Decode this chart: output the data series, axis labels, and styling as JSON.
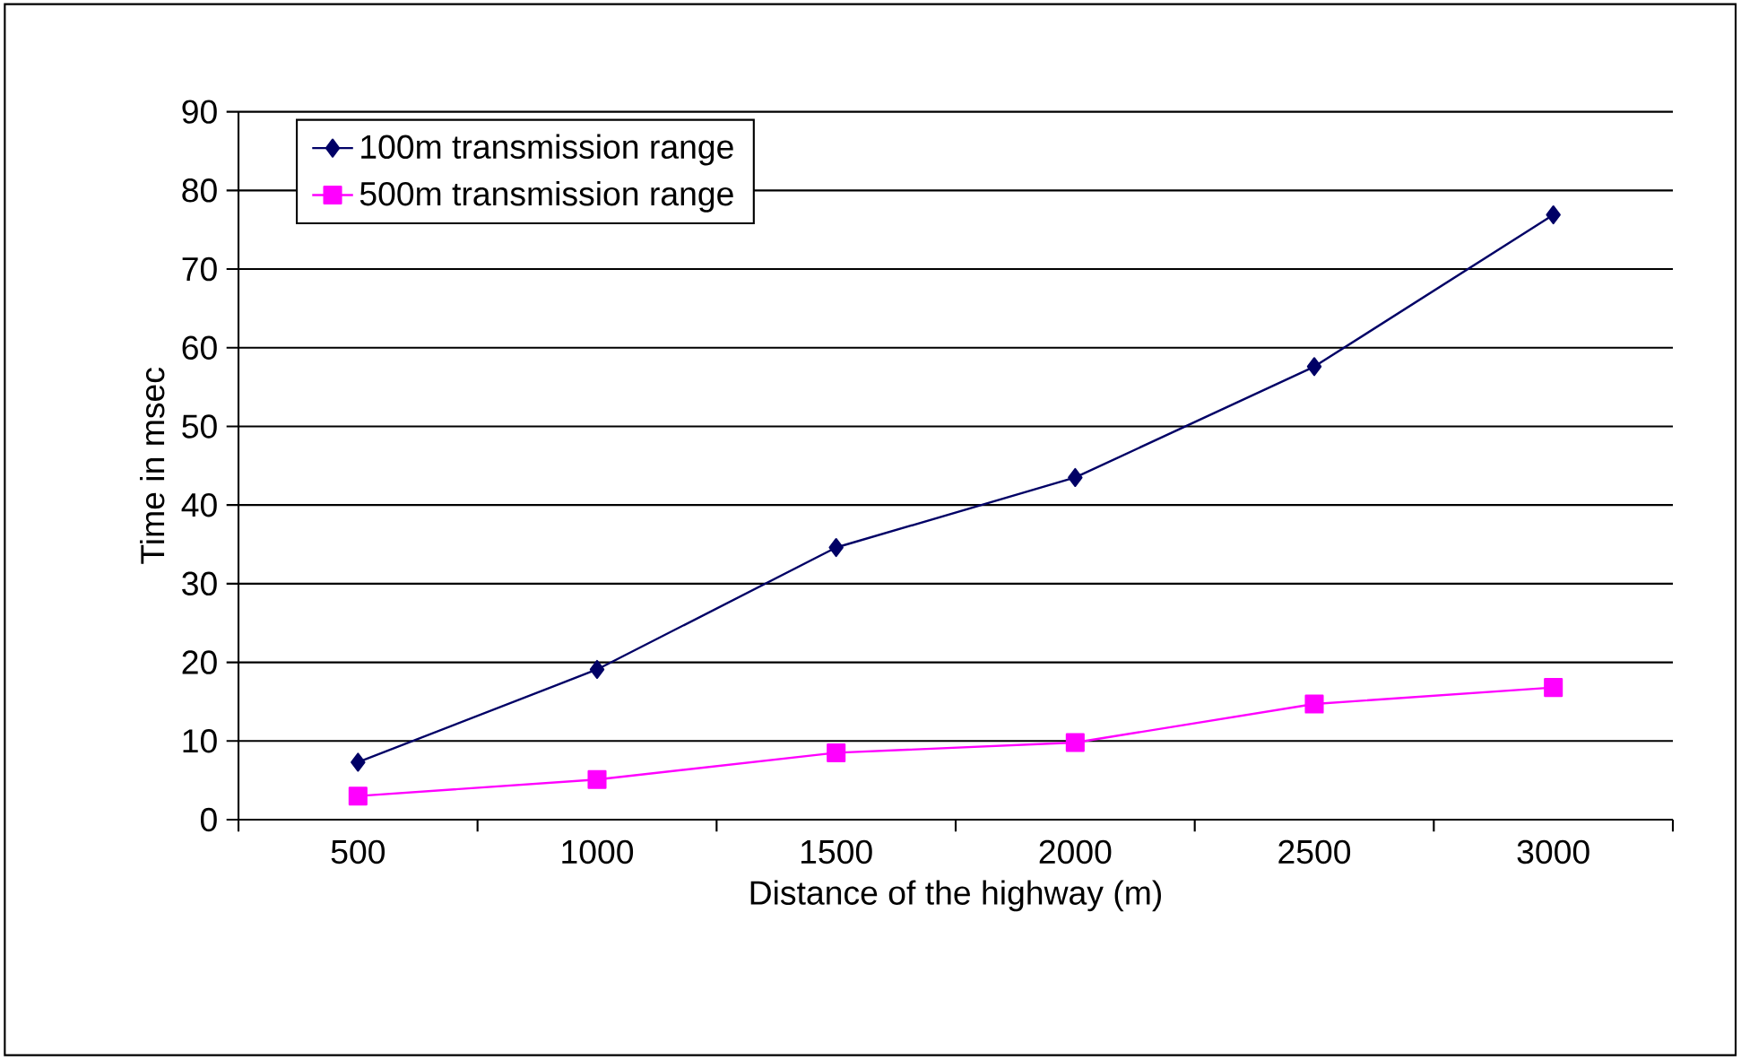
{
  "chart_data": {
    "type": "line",
    "xlabel": "Distance of the highway (m)",
    "ylabel": "Time in msec",
    "categories": [
      "500",
      "1000",
      "1500",
      "2000",
      "2500",
      "3000"
    ],
    "series": [
      {
        "name": "100m transmission range",
        "color": "#000066",
        "marker": "diamond",
        "values": [
          7.3,
          19.1,
          34.6,
          43.5,
          57.6,
          76.9
        ]
      },
      {
        "name": "500m transmission range",
        "color": "#ff00ff",
        "marker": "square",
        "values": [
          3.0,
          5.1,
          8.5,
          9.8,
          14.7,
          16.8
        ]
      }
    ],
    "ylim": [
      0,
      90
    ],
    "yticks": [
      0,
      10,
      20,
      30,
      40,
      50,
      60,
      70,
      80,
      90
    ],
    "grid": "y",
    "legend": "top left",
    "line_style": "solid"
  }
}
